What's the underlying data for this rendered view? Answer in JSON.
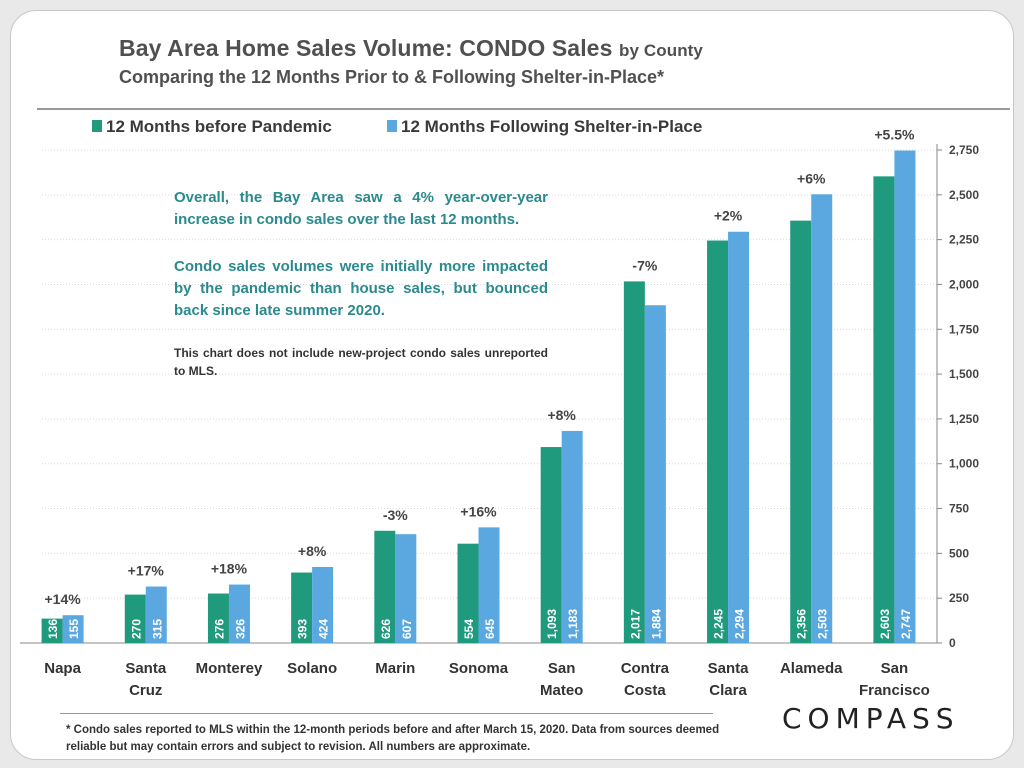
{
  "header": {
    "title": "Bay Area Home Sales Volume: CONDO Sales",
    "title_suffix": "by County",
    "subtitle": "Comparing the 12 Months Prior to & Following Shelter-in-Place*"
  },
  "notes": {
    "p1": "Overall, the Bay Area saw a 4% year-over-year increase in condo sales over the last 12 months.",
    "p2": "Condo sales volumes were initially more impacted by the pandemic than house sales, but bounced back since late summer 2020.",
    "p3": "This chart does not include new-project condo sales unreported to MLS."
  },
  "footnote": "* Condo sales reported to MLS within the 12-month periods before and after March 15, 2020. Data from sources deemed reliable but may contain errors and subject to revision.  All numbers are approximate.",
  "logo_text": "COMPASS",
  "colors": {
    "before": "#1f9a7c",
    "after": "#5ba8e0",
    "note_text": "#2a8a8e",
    "grid": "#d9d9d9"
  },
  "chart_data": {
    "type": "bar",
    "categories": [
      [
        "Napa"
      ],
      [
        "Santa",
        "Cruz"
      ],
      [
        "Monterey"
      ],
      [
        "Solano"
      ],
      [
        "Marin"
      ],
      [
        "Sonoma"
      ],
      [
        "San",
        "Mateo"
      ],
      [
        "Contra",
        "Costa"
      ],
      [
        "Santa",
        "Clara"
      ],
      [
        "Alameda"
      ],
      [
        "San",
        "Francisco"
      ]
    ],
    "series": [
      {
        "name": "12 Months before Pandemic",
        "values": [
          136,
          270,
          276,
          393,
          626,
          554,
          1093,
          2017,
          2245,
          2356,
          2603
        ],
        "labels": [
          "136",
          "270",
          "276",
          "393",
          "626",
          "554",
          "1,093",
          "2,017",
          "2,245",
          "2,356",
          "2,603"
        ]
      },
      {
        "name": "12 Months Following Shelter-in-Place",
        "values": [
          155,
          315,
          326,
          424,
          607,
          645,
          1183,
          1884,
          2294,
          2503,
          2747
        ],
        "labels": [
          "155",
          "315",
          "326",
          "424",
          "607",
          "645",
          "1,183",
          "1,884",
          "2,294",
          "2,503",
          "2,747"
        ]
      }
    ],
    "changes": [
      "+14%",
      "+17%",
      "+18%",
      "+8%",
      "-3%",
      "+16%",
      "+8%",
      "-7%",
      "+2%",
      "+6%",
      "+5.5%"
    ],
    "ylim": [
      0,
      2750
    ],
    "yticks": [
      0,
      250,
      500,
      750,
      1000,
      1250,
      1500,
      1750,
      2000,
      2250,
      2500,
      2750
    ],
    "ytick_labels": [
      "0",
      "250",
      "500",
      "750",
      "1,000",
      "1,250",
      "1,500",
      "1,750",
      "2,000",
      "2,250",
      "2,500",
      "2,750"
    ],
    "y_axis_side": "right",
    "legend": "top-left",
    "grid": true
  }
}
